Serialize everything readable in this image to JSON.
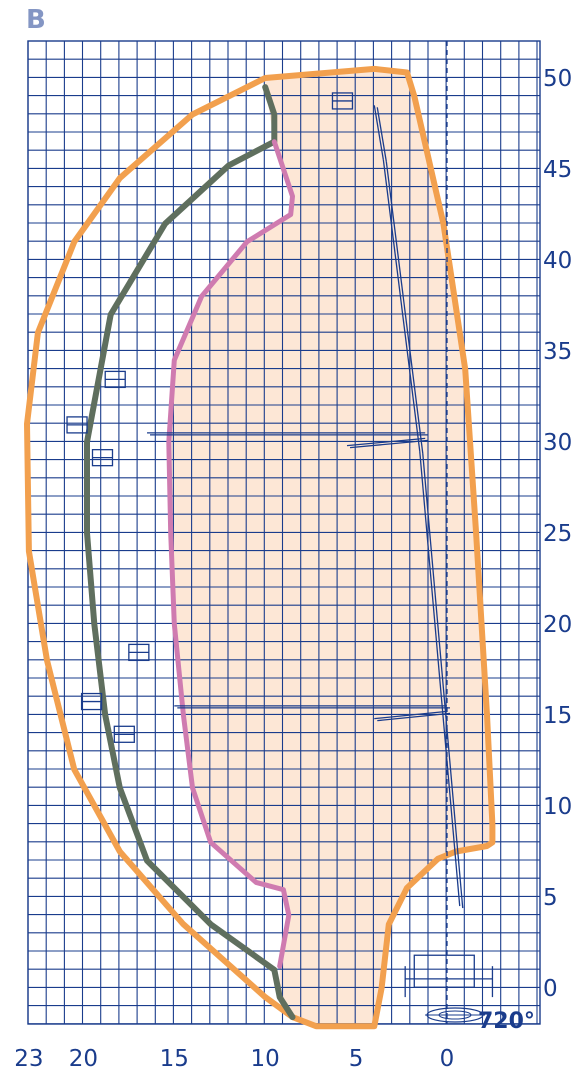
{
  "panel_label": "B",
  "rotation_label": "720°",
  "chart_data": {
    "type": "diagram",
    "x_tick_labels": [
      "23",
      "20",
      "15",
      "10",
      "5",
      "0"
    ],
    "x_ticks": [
      23,
      20,
      15,
      10,
      5,
      0
    ],
    "y_tick_labels": [
      "50",
      "45",
      "40",
      "35",
      "30",
      "25",
      "20",
      "15",
      "10",
      "5",
      "0"
    ],
    "y_ticks": [
      50,
      45,
      40,
      35,
      30,
      25,
      20,
      15,
      10,
      5,
      0
    ],
    "xlim": [
      23,
      -5
    ],
    "ylim": [
      -2,
      53
    ],
    "grid": true,
    "colors": {
      "grid": "#1a3c8c",
      "outer_envelope": "#f2a04e",
      "dark_envelope": "#5f6f5e",
      "pink_envelope": "#cf7bb0",
      "inner_fill": "#fde7d6",
      "panel_label": "#8496c4"
    },
    "envelopes": [
      {
        "id": "outer",
        "points": [
          [
            10,
            50
          ],
          [
            4,
            50.5
          ],
          [
            2.2,
            50.3
          ],
          [
            1.8,
            49
          ],
          [
            0.2,
            42
          ],
          [
            -1,
            34
          ],
          [
            -1.6,
            25
          ],
          [
            -2.2,
            15
          ],
          [
            -2.5,
            9
          ],
          [
            -2.5,
            8
          ],
          [
            -2.2,
            7.8
          ],
          [
            -0.5,
            7.5
          ],
          [
            0.5,
            7.1
          ],
          [
            2.2,
            5.5
          ],
          [
            3.2,
            3.5
          ],
          [
            3.6,
            0
          ],
          [
            4,
            -2.1
          ],
          [
            7.2,
            -2.1
          ],
          [
            8.5,
            -1.6
          ],
          [
            10,
            -0.5
          ],
          [
            14.5,
            3.5
          ],
          [
            18,
            7.5
          ],
          [
            20.5,
            12
          ],
          [
            22,
            18
          ],
          [
            23,
            24
          ],
          [
            23.1,
            31
          ],
          [
            22.5,
            36
          ],
          [
            20.5,
            41
          ],
          [
            18,
            44.5
          ],
          [
            14,
            48
          ],
          [
            10,
            50
          ]
        ]
      },
      {
        "id": "dark",
        "points": [
          [
            10,
            49.5
          ],
          [
            9.5,
            48
          ],
          [
            9.5,
            46.5
          ],
          [
            12,
            45.2
          ],
          [
            15.5,
            42
          ],
          [
            18.5,
            37
          ],
          [
            19.8,
            30
          ],
          [
            19.8,
            25
          ],
          [
            19.4,
            20
          ],
          [
            18.8,
            15
          ],
          [
            18,
            11
          ],
          [
            16.5,
            7
          ],
          [
            13,
            3.5
          ],
          [
            9.5,
            1
          ],
          [
            9.2,
            -0.5
          ],
          [
            8.5,
            -1.6
          ]
        ]
      },
      {
        "id": "pink",
        "points": [
          [
            9.5,
            46.5
          ],
          [
            9,
            45
          ],
          [
            8.5,
            43.5
          ],
          [
            8.6,
            42.5
          ],
          [
            11,
            41
          ],
          [
            13.5,
            38
          ],
          [
            15,
            34.5
          ],
          [
            15.3,
            30
          ],
          [
            15.2,
            25
          ],
          [
            15,
            20
          ],
          [
            14.5,
            15
          ],
          [
            14,
            11
          ],
          [
            13,
            8
          ],
          [
            10.5,
            5.8
          ],
          [
            9,
            5.4
          ],
          [
            8.7,
            4
          ],
          [
            9.2,
            1.2
          ]
        ]
      }
    ],
    "inner_envelope_id": "outer",
    "inner_clip_id": "pink"
  }
}
